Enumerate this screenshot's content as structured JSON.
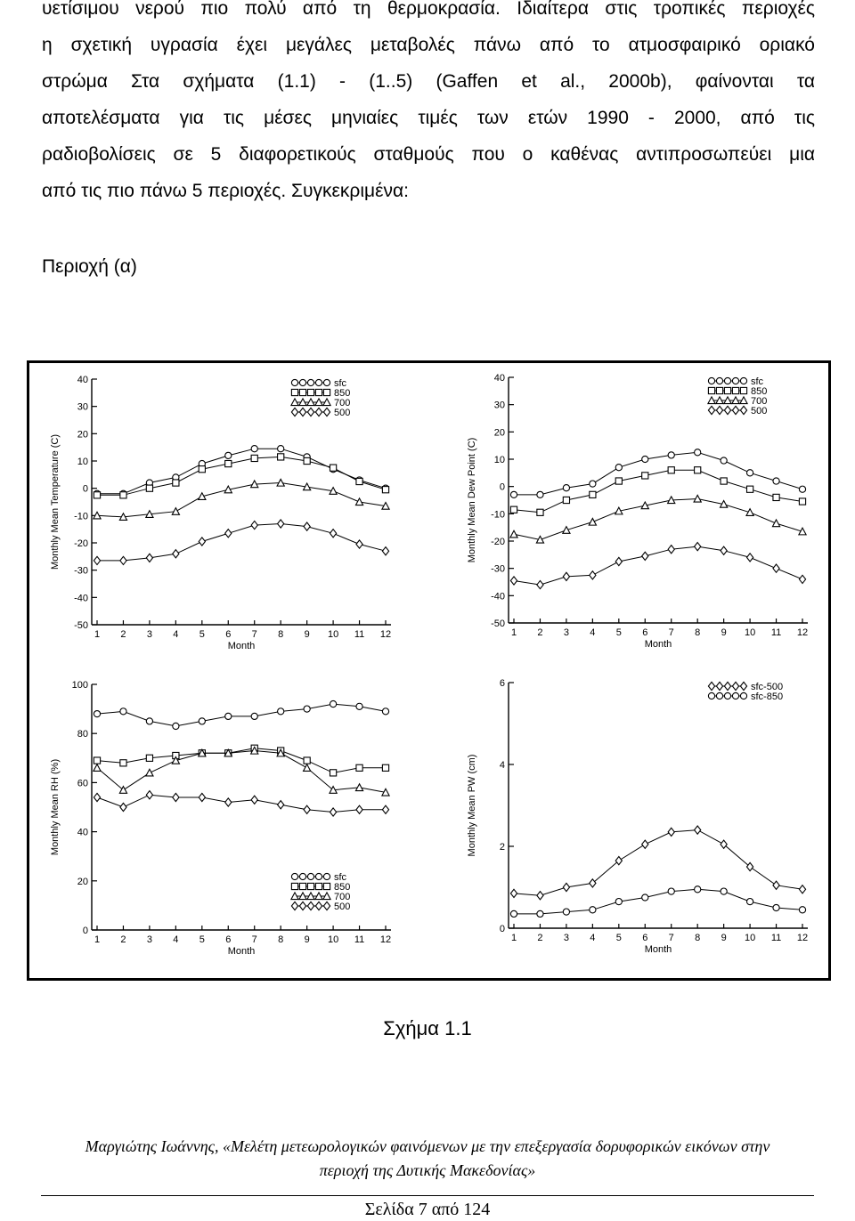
{
  "body_text": {
    "lines": [
      "υετίσιμου νερού πιο πολύ από τη θερμοκρασία. Ιδιαίτερα στις τροπικές περιοχές",
      "η σχετική υγρασία έχει μεγάλες μεταβολές πάνω από το ατμοσφαιρικό οριακό",
      "στρώμα Στα σχήματα (1.1) - (1..5) (Gaffen et al., 2000b), φαίνονται τα",
      "αποτελέσματα για τις μέσες μηνιαίες τιμές των ετών 1990 - 2000, από τις",
      "ραδιοβολίσεις σε 5 διαφορετικούς σταθμούς που ο καθένας αντιπροσωπεύει μια",
      "από τις πιο πάνω 5 περιοχές. Συγκεκριμένα:"
    ]
  },
  "region_label": "Περιοχή (α)",
  "chart_data": [
    {
      "type": "line",
      "xlabel": "Month",
      "ylabel": "Monthly Mean Temperature (C)",
      "x": [
        1,
        2,
        3,
        4,
        5,
        6,
        7,
        8,
        9,
        10,
        11,
        12
      ],
      "ylim": [
        -50,
        40
      ],
      "yticks": [
        -50,
        -40,
        -30,
        -20,
        -10,
        0,
        10,
        20,
        30,
        40
      ],
      "legend_position": "top-right",
      "series": [
        {
          "name": "sfc",
          "marker": "circle",
          "values": [
            -2,
            -2,
            2,
            4,
            9,
            12,
            14.5,
            14.5,
            11.5,
            7,
            3,
            0
          ]
        },
        {
          "name": "850",
          "marker": "square",
          "values": [
            -2.5,
            -2.5,
            0,
            2,
            7,
            9,
            11,
            11.5,
            10,
            7.5,
            2.5,
            -0.5
          ]
        },
        {
          "name": "700",
          "marker": "triangle",
          "values": [
            -10,
            -10.5,
            -9.5,
            -8.5,
            -3,
            -0.5,
            1.5,
            2,
            0.5,
            -1,
            -5,
            -6.5
          ]
        },
        {
          "name": "500",
          "marker": "diamond",
          "values": [
            -26.5,
            -26.5,
            -25.5,
            -24,
            -19.5,
            -16.5,
            -13.5,
            -13,
            -14,
            -16.5,
            -20.5,
            -23
          ]
        }
      ]
    },
    {
      "type": "line",
      "xlabel": "Month",
      "ylabel": "Monthly Mean Dew Point (C)",
      "x": [
        1,
        2,
        3,
        4,
        5,
        6,
        7,
        8,
        9,
        10,
        11,
        12
      ],
      "ylim": [
        -50,
        40
      ],
      "yticks": [
        -50,
        -40,
        -30,
        -20,
        -10,
        0,
        10,
        20,
        30,
        40
      ],
      "legend_position": "top-right",
      "series": [
        {
          "name": "sfc",
          "marker": "circle",
          "values": [
            -3,
            -3,
            -0.5,
            1,
            7,
            10,
            11.5,
            12.5,
            9.5,
            5,
            2,
            -1
          ]
        },
        {
          "name": "850",
          "marker": "square",
          "values": [
            -8.5,
            -9.5,
            -5,
            -3,
            2,
            4,
            6,
            6,
            2,
            -1,
            -4,
            -5.5
          ]
        },
        {
          "name": "700",
          "marker": "triangle",
          "values": [
            -17.5,
            -19.5,
            -16,
            -13,
            -9,
            -7,
            -5,
            -4.5,
            -6.5,
            -9.5,
            -13.5,
            -16.5
          ]
        },
        {
          "name": "500",
          "marker": "diamond",
          "values": [
            -34.5,
            -36,
            -33,
            -32.5,
            -27.5,
            -25.5,
            -23,
            -22,
            -23.5,
            -26,
            -30,
            -34
          ]
        }
      ]
    },
    {
      "type": "line",
      "xlabel": "Month",
      "ylabel": "Monthly Mean RH (%)",
      "x": [
        1,
        2,
        3,
        4,
        5,
        6,
        7,
        8,
        9,
        10,
        11,
        12
      ],
      "ylim": [
        0,
        100
      ],
      "yticks": [
        0,
        20,
        40,
        60,
        80,
        100
      ],
      "legend_position": "bottom-right",
      "series": [
        {
          "name": "sfc",
          "marker": "circle",
          "values": [
            88,
            89,
            85,
            83,
            85,
            87,
            87,
            89,
            90,
            92,
            91,
            89
          ]
        },
        {
          "name": "850",
          "marker": "square",
          "values": [
            69,
            68,
            70,
            71,
            72,
            72,
            74,
            73,
            69,
            64,
            66,
            66
          ]
        },
        {
          "name": "700",
          "marker": "triangle",
          "values": [
            66,
            57,
            64,
            69,
            72,
            72,
            73,
            72,
            66,
            57,
            58,
            56
          ]
        },
        {
          "name": "500",
          "marker": "diamond",
          "values": [
            54,
            50,
            55,
            54,
            54,
            52,
            53,
            51,
            49,
            48,
            49,
            49
          ]
        }
      ]
    },
    {
      "type": "line",
      "xlabel": "Month",
      "ylabel": "Monthly Mean PW (cm)",
      "x": [
        1,
        2,
        3,
        4,
        5,
        6,
        7,
        8,
        9,
        10,
        11,
        12
      ],
      "ylim": [
        0,
        6
      ],
      "yticks": [
        0,
        2,
        4,
        6
      ],
      "legend_position": "top-right",
      "series": [
        {
          "name": "sfc-500",
          "marker": "diamond",
          "values": [
            0.85,
            0.8,
            1.0,
            1.1,
            1.65,
            2.05,
            2.35,
            2.4,
            2.05,
            1.5,
            1.05,
            0.95
          ]
        },
        {
          "name": "sfc-850",
          "marker": "circle",
          "values": [
            0.35,
            0.35,
            0.4,
            0.45,
            0.65,
            0.75,
            0.9,
            0.95,
            0.9,
            0.65,
            0.5,
            0.45
          ]
        }
      ]
    }
  ],
  "caption": "Σχήμα 1.1",
  "footer": {
    "line1": "Μαργιώτης Ιωάννης, «Μελέτη μετεωρολογικών φαινόμενων με την επεξεργασία δορυφορικών εικόνων στην",
    "line2": "περιοχή της Δυτικής Μακεδονίας»"
  },
  "page_number": "Σελίδα 7 από 124"
}
